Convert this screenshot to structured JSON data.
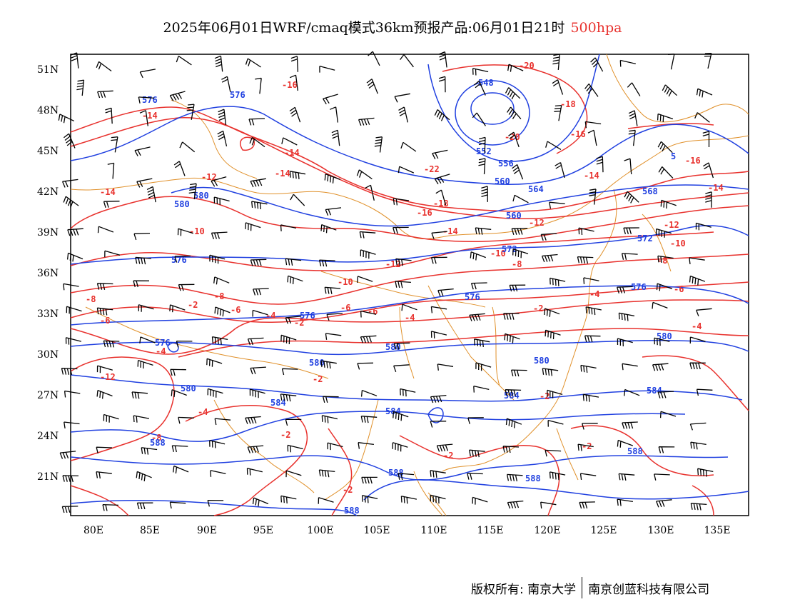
{
  "title": {
    "main": "2025年06月01日WRF/cmaq模式36km预报产品:06月01日21时",
    "level": "500hpa"
  },
  "axes": {
    "lat_labels": [
      "51N",
      "48N",
      "45N",
      "42N",
      "39N",
      "36N",
      "33N",
      "30N",
      "27N",
      "24N",
      "21N"
    ],
    "lon_labels": [
      "80E",
      "85E",
      "90E",
      "95E",
      "100E",
      "105E",
      "110E",
      "115E",
      "120E",
      "125E",
      "130E",
      "135E"
    ]
  },
  "colors": {
    "temperature": "#e8312d",
    "height": "#2040e0",
    "border": "#e0902a",
    "barb": "#000000"
  },
  "map": {
    "temperature_labels": [
      "-20",
      "-18",
      "-16",
      "-16",
      "-16",
      "-14",
      "-14",
      "-14",
      "-14",
      "-14",
      "-14",
      "-12",
      "-12",
      "-12",
      "-12",
      "-10",
      "-10",
      "-10",
      "-10",
      "-8",
      "-8",
      "-8",
      "-8",
      "-6",
      "-6",
      "-6",
      "-6",
      "-4",
      "-4",
      "-4",
      "-4",
      "-4",
      "-4",
      "-2",
      "-2",
      "-2",
      "-2",
      "-2",
      "-2",
      "-2",
      "-2",
      "-2",
      "-22",
      "-20",
      "-16",
      "-18",
      "-14",
      "-12",
      "-8",
      "-6"
    ],
    "height_labels": [
      "576",
      "576",
      "548",
      "552",
      "556",
      "560",
      "564",
      "568",
      "580",
      "580",
      "576",
      "576",
      "576",
      "560",
      "572",
      "572",
      "576",
      "576",
      "580",
      "580",
      "580",
      "580",
      "580",
      "584",
      "584",
      "584",
      "584",
      "588",
      "588",
      "588",
      "588",
      "588",
      "584",
      "568",
      "5"
    ]
  },
  "footer": {
    "left": "版权所有: 南京大学",
    "right": "南京创蓝科技有限公司"
  }
}
